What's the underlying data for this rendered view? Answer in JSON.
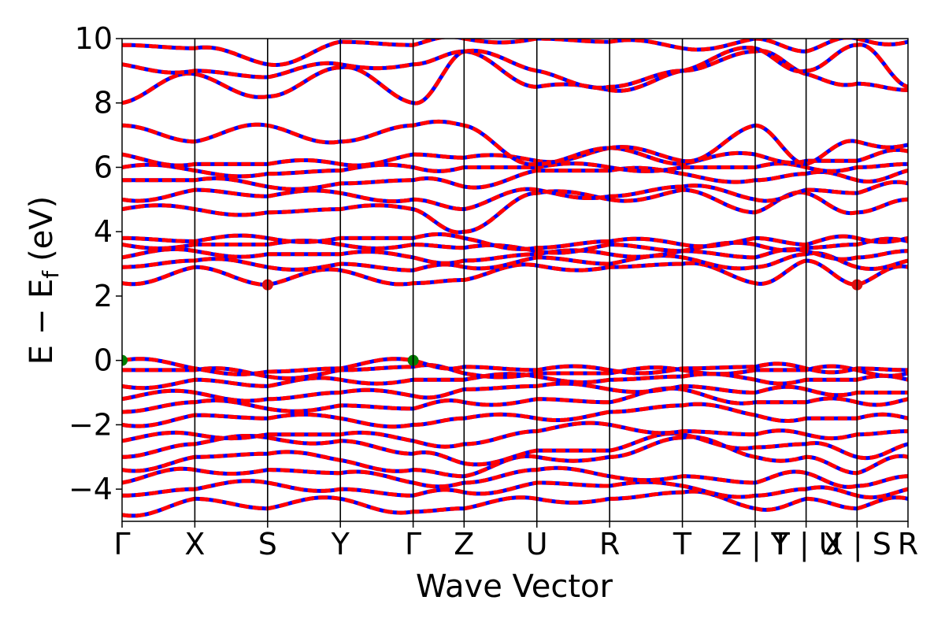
{
  "chart_data": {
    "type": "line",
    "xlabel": "Wave Vector",
    "ylabel": {
      "main": "E − E",
      "subscript": "f",
      "unit": "(eV)"
    },
    "ylim": [
      -5,
      10
    ],
    "yticks": [
      "−4",
      "−2",
      "0",
      "2",
      "4",
      "6",
      "8",
      "10"
    ],
    "ytick_values": [
      -4,
      -2,
      0,
      2,
      4,
      6,
      8,
      10
    ],
    "kpath": [
      {
        "label": "Γ",
        "x": 0.0
      },
      {
        "label": "X",
        "x": 1.0
      },
      {
        "label": "S",
        "x": 2.0
      },
      {
        "label": "Y",
        "x": 3.0
      },
      {
        "label": "Γ",
        "x": 4.0
      },
      {
        "label": "Z",
        "x": 4.7
      },
      {
        "label": "U",
        "x": 5.7
      },
      {
        "label": "R",
        "x": 6.7
      },
      {
        "label": "T",
        "x": 7.7
      },
      {
        "label": "Z | Y",
        "x": 8.7
      },
      {
        "label": "T | U",
        "x": 9.4
      },
      {
        "label": "X | S",
        "x": 10.1
      },
      {
        "label": "R",
        "x": 10.8
      }
    ],
    "xlim": [
      0,
      10.8
    ],
    "grid": false,
    "series_colors": {
      "spin_up": "#0000ff",
      "spin_down": "#ff0000"
    },
    "vbm_markers": [
      {
        "x": 0.0,
        "y": 0.0
      },
      {
        "x": 4.0,
        "y": 0.0
      }
    ],
    "cbm_markers": [
      {
        "x": 2.0,
        "y": 2.35
      },
      {
        "x": 10.1,
        "y": 2.35
      }
    ],
    "marker_colors": {
      "vbm": "#007f00",
      "cbm": "#e01010"
    },
    "bands_at_kpoints": [
      [
        -4.8,
        -4.3,
        -4.6,
        -4.3,
        -4.7,
        -4.6,
        -4.3,
        -4.3,
        -4.1,
        -4.6,
        -4.3,
        -4.6,
        -4.3
      ],
      [
        -4.2,
        -4.0,
        -3.8,
        -4.0,
        -4.2,
        -4.1,
        -3.8,
        -3.9,
        -3.9,
        -4.2,
        -4.0,
        -4.2,
        -4.0
      ],
      [
        -3.8,
        -3.4,
        -3.4,
        -3.5,
        -3.8,
        -3.8,
        -3.4,
        -3.6,
        -3.6,
        -3.8,
        -3.5,
        -3.9,
        -3.6
      ],
      [
        -3.4,
        -3.0,
        -2.9,
        -3.1,
        -3.4,
        -3.6,
        -3.0,
        -3.0,
        -2.4,
        -3.0,
        -3.0,
        -3.5,
        -3.0
      ],
      [
        -3.0,
        -2.6,
        -2.4,
        -2.5,
        -2.9,
        -3.2,
        -2.8,
        -2.8,
        -2.3,
        -2.7,
        -2.6,
        -3.0,
        -2.6
      ],
      [
        -2.5,
        -2.3,
        -2.3,
        -2.3,
        -2.5,
        -2.6,
        -2.2,
        -2.0,
        -2.2,
        -2.3,
        -2.3,
        -2.3,
        -2.2
      ],
      [
        -2.0,
        -1.7,
        -1.8,
        -1.8,
        -2.0,
        -1.8,
        -1.8,
        -1.6,
        -1.4,
        -1.7,
        -1.8,
        -1.8,
        -1.8
      ],
      [
        -1.6,
        -1.3,
        -1.5,
        -1.4,
        -1.5,
        -1.3,
        -1.2,
        -1.3,
        -0.9,
        -1.3,
        -1.3,
        -1.3,
        -1.2
      ],
      [
        -1.2,
        -1.0,
        -1.2,
        -1.0,
        -1.1,
        -0.9,
        -0.8,
        -0.9,
        -0.8,
        -1.0,
        -0.9,
        -1.0,
        -1.0
      ],
      [
        -0.8,
        -0.6,
        -0.8,
        -0.6,
        -0.6,
        -0.6,
        -0.5,
        -0.6,
        -0.5,
        -0.6,
        -0.6,
        -0.6,
        -0.6
      ],
      [
        -0.3,
        -0.3,
        -0.5,
        -0.3,
        -0.2,
        -0.4,
        -0.4,
        -0.4,
        -0.3,
        -0.3,
        -0.3,
        -0.3,
        -0.4
      ],
      [
        0.0,
        -0.25,
        -0.35,
        -0.25,
        0.0,
        -0.2,
        -0.3,
        -0.3,
        -0.25,
        -0.2,
        -0.25,
        -0.25,
        -0.3
      ],
      [
        2.4,
        2.9,
        2.35,
        2.8,
        2.4,
        2.5,
        2.95,
        2.9,
        3.0,
        2.4,
        3.1,
        2.35,
        2.9
      ],
      [
        2.9,
        3.1,
        2.9,
        3.0,
        2.8,
        2.9,
        3.2,
        3.0,
        3.2,
        2.9,
        3.3,
        2.9,
        3.1
      ],
      [
        3.2,
        3.4,
        3.3,
        3.3,
        3.2,
        3.1,
        3.3,
        3.3,
        3.4,
        3.2,
        3.4,
        3.2,
        3.4
      ],
      [
        3.6,
        3.6,
        3.6,
        3.6,
        3.6,
        3.5,
        3.4,
        3.6,
        3.4,
        3.6,
        3.5,
        3.6,
        3.7
      ],
      [
        3.8,
        3.7,
        3.8,
        3.8,
        3.8,
        3.8,
        3.5,
        3.7,
        3.6,
        3.8,
        3.6,
        3.8,
        3.8
      ],
      [
        4.7,
        4.7,
        4.6,
        4.7,
        4.7,
        4.0,
        5.2,
        5.0,
        5.3,
        4.6,
        5.2,
        4.6,
        5.0
      ],
      [
        5.0,
        5.3,
        5.1,
        5.2,
        5.0,
        4.7,
        5.3,
        5.1,
        5.4,
        5.0,
        5.3,
        5.2,
        5.5
      ],
      [
        5.6,
        5.6,
        5.4,
        5.5,
        5.6,
        5.4,
        5.9,
        5.9,
        5.8,
        5.6,
        5.8,
        5.6,
        5.9
      ],
      [
        6.0,
        5.9,
        5.8,
        5.9,
        6.0,
        6.0,
        6.0,
        6.0,
        6.0,
        6.0,
        6.0,
        6.0,
        6.1
      ],
      [
        6.4,
        6.1,
        6.1,
        6.1,
        6.4,
        6.3,
        6.2,
        6.6,
        6.1,
        6.4,
        6.2,
        6.2,
        6.5
      ],
      [
        7.3,
        6.8,
        7.3,
        6.8,
        7.3,
        7.3,
        6.1,
        6.6,
        6.2,
        7.3,
        6.1,
        6.8,
        6.7
      ],
      [
        8.0,
        8.9,
        8.2,
        9.1,
        8.0,
        9.6,
        8.5,
        8.4,
        9.0,
        9.6,
        8.9,
        8.6,
        8.4
      ],
      [
        9.2,
        9.0,
        8.8,
        9.2,
        9.2,
        9.6,
        9.0,
        8.5,
        9.0,
        9.7,
        9.0,
        9.8,
        8.5
      ],
      [
        9.8,
        9.7,
        9.2,
        9.9,
        9.8,
        10.0,
        10.0,
        9.9,
        9.7,
        10.0,
        9.6,
        10.0,
        9.9
      ]
    ]
  }
}
